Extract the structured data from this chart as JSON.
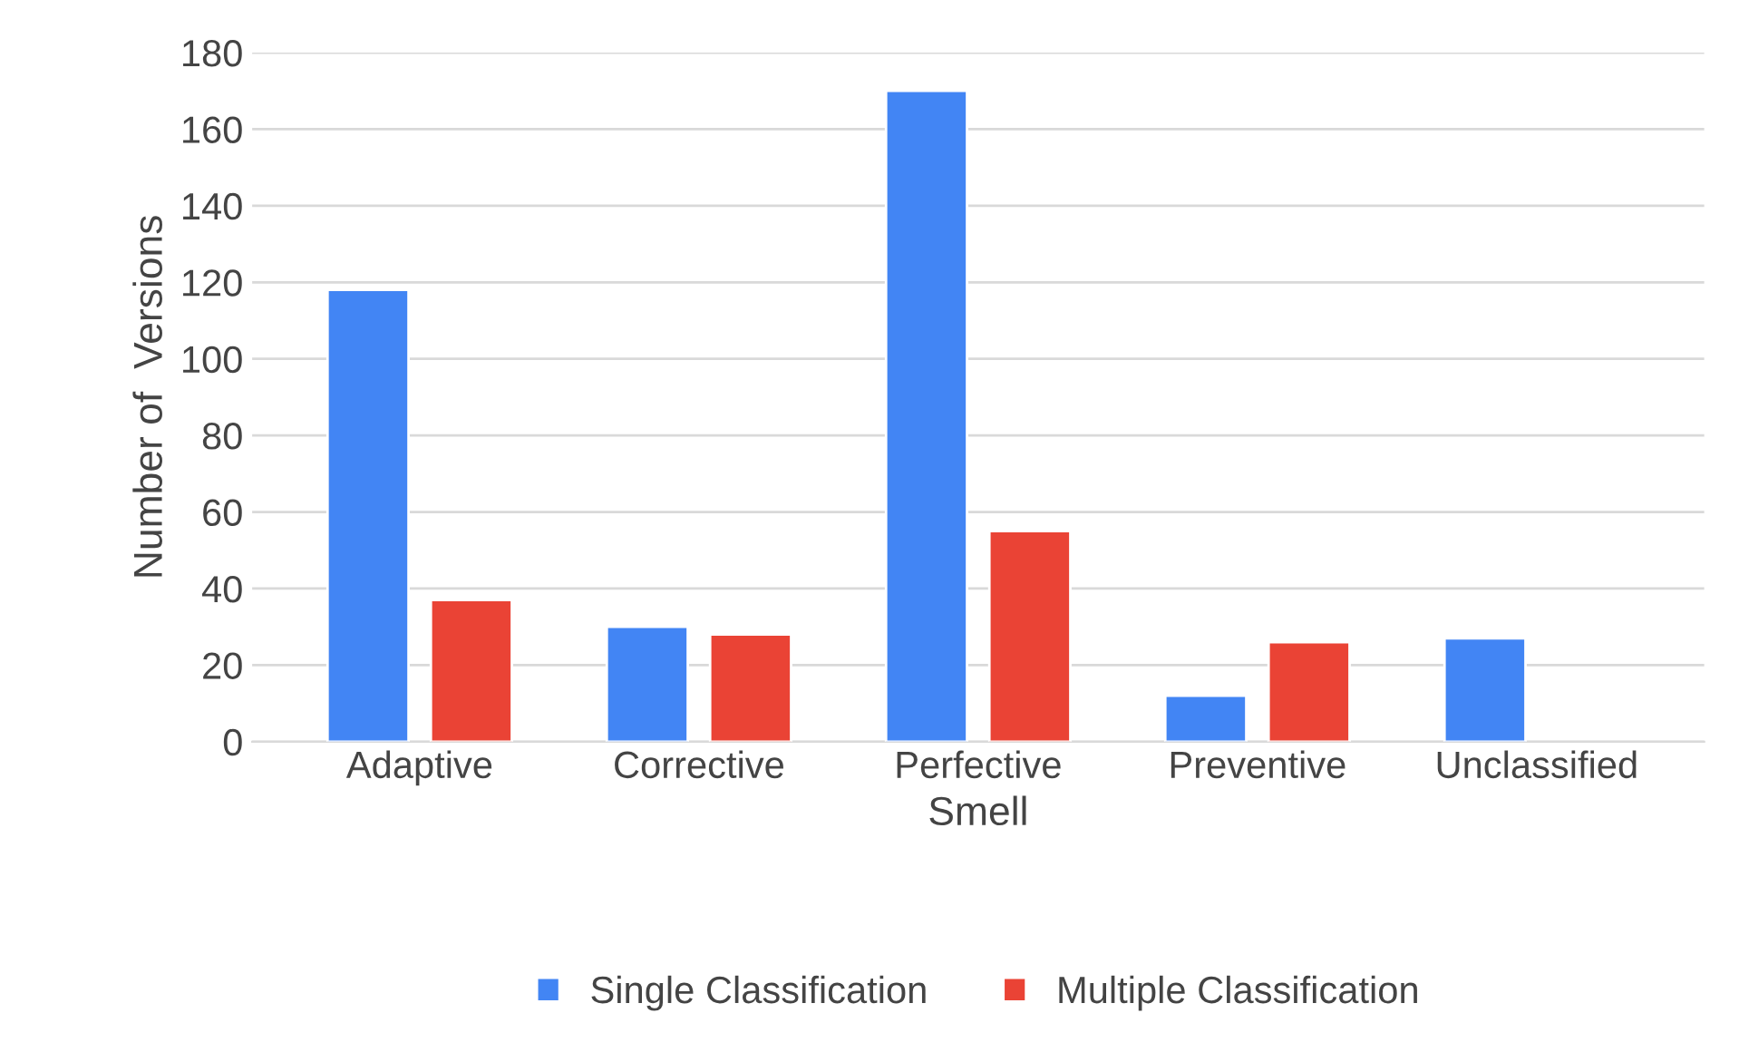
{
  "chart_data": {
    "type": "bar",
    "xlabel": "Smell",
    "ylabel": "Number of  Versions",
    "categories": [
      "Adaptive",
      "Corrective",
      "Perfective",
      "Preventive",
      "Unclassified"
    ],
    "series": [
      {
        "name": "Single Classification",
        "color": "#4285f4",
        "values": [
          118,
          30,
          170,
          12,
          27
        ]
      },
      {
        "name": "Multiple Classification",
        "color": "#ea4335",
        "values": [
          37,
          28,
          55,
          26,
          null
        ]
      }
    ],
    "ylim": [
      0,
      180
    ],
    "yticks": [
      0,
      20,
      40,
      60,
      80,
      100,
      120,
      140,
      160,
      180
    ],
    "grid": "y",
    "legend": "bottom"
  }
}
